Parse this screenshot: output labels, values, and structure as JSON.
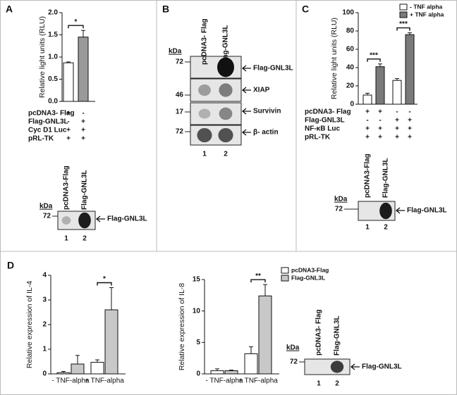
{
  "panels": {
    "a": "A",
    "b": "B",
    "c": "C",
    "d": "D"
  },
  "chart_data": [
    {
      "type": "bar",
      "ylabel": "Relative light units (RLU)",
      "categories": [
        null,
        null
      ],
      "values": [
        0.87,
        1.45
      ],
      "errors": [
        0.02,
        0.15
      ],
      "colors": [
        "#ffffff",
        "#9a9a9a"
      ],
      "ylim": [
        0,
        2
      ],
      "yticks": [
        {
          "value": 0,
          "label": "0.0"
        },
        0.5,
        {
          "value": 1,
          "label": "1.0"
        },
        1.5,
        {
          "value": 2,
          "label": "2.0"
        }
      ],
      "significance": "*"
    },
    {
      "type": "bar",
      "ylabel": "Relative light units (RLU)",
      "categories": [
        null,
        null
      ],
      "series": [
        {
          "name": "- TNF alpha",
          "color": "#ffffff",
          "values": [
            10,
            26
          ],
          "errors": [
            2,
            2
          ]
        },
        {
          "name": "+ TNF alpha",
          "color": "#7a7a7a",
          "values": [
            41,
            76
          ],
          "errors": [
            3,
            2
          ]
        }
      ],
      "ylim": [
        0,
        100
      ],
      "yticks": [
        0,
        20,
        40,
        60,
        80,
        100
      ],
      "significance": [
        "***",
        "***"
      ],
      "legend": true
    },
    {
      "type": "bar",
      "ylabel": "Relative expression of IL-4",
      "categories": [
        "- TNF-alpha",
        "+ TNF-alpha"
      ],
      "series": [
        {
          "color": "#ffffff",
          "values": [
            0.05,
            0.47
          ],
          "errors": [
            0.05,
            0.1
          ]
        },
        {
          "color": "#c8c8c8",
          "values": [
            0.4,
            2.6
          ],
          "errors": [
            0.35,
            0.9
          ]
        }
      ],
      "ylim": [
        0,
        4
      ],
      "yticks": [
        0,
        1,
        2,
        3,
        4
      ],
      "significance": "*"
    },
    {
      "type": "bar",
      "ylabel": "Relative expression of IL-8",
      "categories": [
        "- TNF-alpha",
        "+ TNF-alpha"
      ],
      "series": [
        {
          "name": "pcDNA3-Flag",
          "color": "#ffffff",
          "values": [
            0.5,
            3.2
          ],
          "errors": [
            0.3,
            1.1
          ]
        },
        {
          "name": "Flag-GNL3L",
          "color": "#c8c8c8",
          "values": [
            0.5,
            12.4
          ],
          "errors": [
            0.1,
            1.8
          ]
        }
      ],
      "ylim": [
        0,
        15
      ],
      "yticks": [
        0,
        5,
        10,
        15
      ],
      "significance": "**",
      "legend": true
    }
  ],
  "conditions_a": {
    "rows": [
      {
        "label": "pcDNA3- Flag",
        "cells": [
          "+",
          "-"
        ]
      },
      {
        "label": "Flag-GNL3L",
        "cells": [
          "-",
          "+"
        ]
      },
      {
        "label": "Cyc D1 Luc",
        "cells": [
          "+",
          "+"
        ]
      },
      {
        "label": "pRL-TK",
        "cells": [
          "+",
          "+"
        ]
      }
    ]
  },
  "conditions_c": {
    "rows": [
      {
        "label": "pcDNA3- Flag",
        "cells": [
          "+",
          "+",
          "-",
          "-"
        ]
      },
      {
        "label": "Flag-GNL3L",
        "cells": [
          "-",
          "-",
          "+",
          "+"
        ]
      },
      {
        "label": "NF-κB Luc",
        "cells": [
          "+",
          "+",
          "+",
          "+"
        ]
      },
      {
        "label": "pRL-TK",
        "cells": [
          "+",
          "+",
          "+",
          "+"
        ]
      }
    ]
  },
  "blot_a": {
    "kda": "kDa",
    "markers": [
      "72"
    ],
    "lanes": [
      "pcDNA3-Flag",
      "Flag-GNL3L"
    ],
    "bands": [
      "Flag-GNL3L"
    ],
    "lane_numbers": [
      "1",
      "2"
    ]
  },
  "blot_b": {
    "kda": "kDa",
    "markers": [
      "72",
      "46",
      "17",
      "72"
    ],
    "lanes": [
      "pcDNA3- Flag",
      "Flag-GNL3L"
    ],
    "bands": [
      "Flag-GNL3L",
      "XIAP",
      "Survivin",
      "β- actin"
    ],
    "lane_numbers": [
      "1",
      "2"
    ]
  },
  "blot_c": {
    "kda": "kDa",
    "markers": [
      "72"
    ],
    "lanes": [
      "pcDNA3-Flag",
      "Flag-GNL3L"
    ],
    "bands": [
      "Flag-GNL3L"
    ],
    "lane_numbers": [
      "1",
      "2"
    ]
  },
  "blot_d": {
    "kda": "kDa",
    "markers": [
      "72"
    ],
    "lanes": [
      "pcDNA3- Flag",
      "Flag-GNL3L"
    ],
    "bands": [
      "Flag-GNL3L"
    ],
    "lane_numbers": [
      "1",
      "2"
    ]
  }
}
